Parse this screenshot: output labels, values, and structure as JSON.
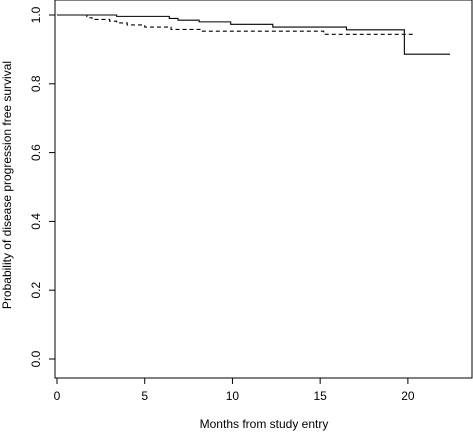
{
  "chart_data": {
    "type": "line",
    "title": "",
    "xlabel": "Months from study entry",
    "ylabel": "Probability of disease progression free survival",
    "xlim": [
      0,
      22.8
    ],
    "ylim": [
      0,
      1.0
    ],
    "x_ticks": [
      0,
      5,
      10,
      15,
      20
    ],
    "y_ticks": [
      0.0,
      0.2,
      0.4,
      0.6,
      0.8,
      1.0
    ],
    "x_tick_labels": [
      "0",
      "5",
      "10",
      "15",
      "20"
    ],
    "y_tick_labels": [
      "0.0",
      "0.2",
      "0.4",
      "0.6",
      "0.8",
      "1.0"
    ],
    "grid": false,
    "legend": "none",
    "step": true,
    "series": [
      {
        "line_style": "solid",
        "x": [
          0,
          3.4,
          6.4,
          6.9,
          8.1,
          9.9,
          12.3,
          16.5,
          19.8,
          22.4
        ],
        "y": [
          1.0,
          0.996,
          0.99,
          0.985,
          0.98,
          0.973,
          0.965,
          0.957,
          0.886,
          0.886
        ]
      },
      {
        "line_style": "dashed",
        "x": [
          0,
          1.7,
          2.0,
          3.0,
          3.4,
          4.0,
          5.0,
          6.5,
          8.2,
          15.2,
          20.3
        ],
        "y": [
          1.0,
          0.992,
          0.987,
          0.982,
          0.977,
          0.971,
          0.965,
          0.958,
          0.953,
          0.944,
          0.944
        ]
      }
    ]
  }
}
